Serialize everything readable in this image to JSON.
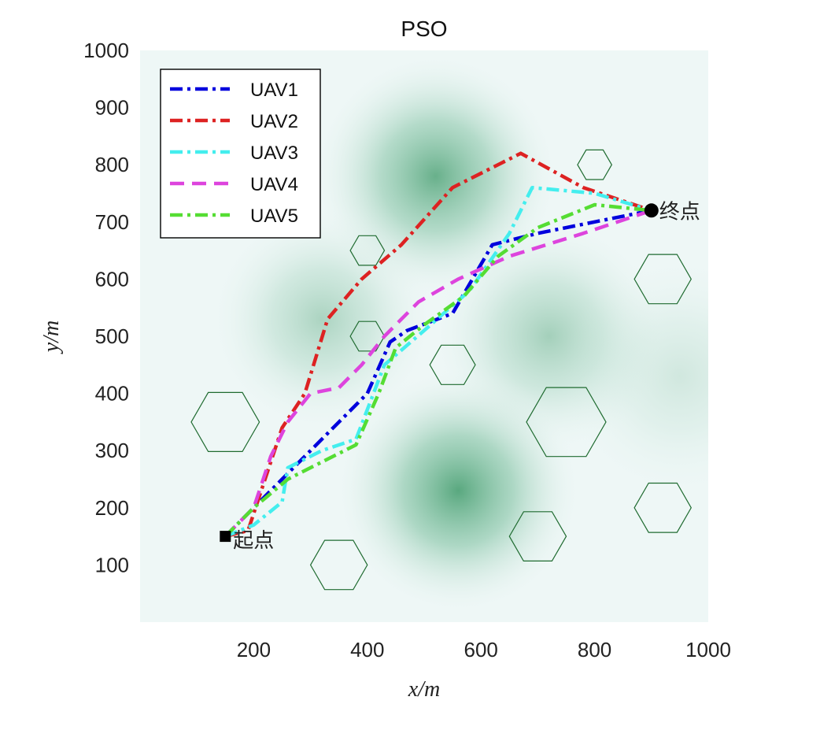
{
  "chart_data": {
    "type": "line",
    "title": "PSO",
    "xlabel": "x/m",
    "ylabel": "y/m",
    "xlim": [
      0,
      1000
    ],
    "ylim": [
      0,
      1000
    ],
    "xticks": [
      200,
      400,
      600,
      800,
      1000
    ],
    "yticks": [
      100,
      200,
      300,
      400,
      500,
      600,
      700,
      800,
      900,
      1000
    ],
    "legend_position": "top-left",
    "start": {
      "label": "起点",
      "x": 150,
      "y": 150
    },
    "end": {
      "label": "终点",
      "x": 900,
      "y": 720
    },
    "threat_peaks": [
      {
        "x": 520,
        "y": 780,
        "strength": 0.9,
        "spread": 120
      },
      {
        "x": 320,
        "y": 530,
        "strength": 0.45,
        "spread": 110
      },
      {
        "x": 720,
        "y": 500,
        "strength": 0.5,
        "spread": 115
      },
      {
        "x": 560,
        "y": 230,
        "strength": 1.0,
        "spread": 120
      },
      {
        "x": 950,
        "y": 430,
        "strength": 0.2,
        "spread": 120
      }
    ],
    "obstacles": [
      {
        "x": 800,
        "y": 800,
        "r": 30
      },
      {
        "x": 400,
        "y": 650,
        "r": 30
      },
      {
        "x": 920,
        "y": 600,
        "r": 50
      },
      {
        "x": 400,
        "y": 500,
        "r": 30
      },
      {
        "x": 550,
        "y": 450,
        "r": 40
      },
      {
        "x": 150,
        "y": 350,
        "r": 60
      },
      {
        "x": 750,
        "y": 350,
        "r": 70
      },
      {
        "x": 920,
        "y": 200,
        "r": 50
      },
      {
        "x": 700,
        "y": 150,
        "r": 50
      },
      {
        "x": 350,
        "y": 100,
        "r": 50
      }
    ],
    "series": [
      {
        "name": "UAV1",
        "color": "#0000dd",
        "dash": "dashdot",
        "points": [
          [
            150,
            150
          ],
          [
            200,
            200
          ],
          [
            250,
            250
          ],
          [
            300,
            300
          ],
          [
            350,
            350
          ],
          [
            400,
            400
          ],
          [
            440,
            490
          ],
          [
            470,
            510
          ],
          [
            550,
            540
          ],
          [
            620,
            660
          ],
          [
            700,
            680
          ],
          [
            800,
            700
          ],
          [
            900,
            720
          ]
        ]
      },
      {
        "name": "UAV2",
        "color": "#dd2222",
        "dash": "dashdot",
        "points": [
          [
            150,
            150
          ],
          [
            190,
            160
          ],
          [
            220,
            250
          ],
          [
            250,
            340
          ],
          [
            290,
            400
          ],
          [
            330,
            530
          ],
          [
            390,
            600
          ],
          [
            460,
            660
          ],
          [
            550,
            760
          ],
          [
            670,
            820
          ],
          [
            780,
            760
          ],
          [
            900,
            720
          ]
        ]
      },
      {
        "name": "UAV3",
        "color": "#44eeee",
        "dash": "dashdot",
        "points": [
          [
            150,
            150
          ],
          [
            200,
            170
          ],
          [
            250,
            210
          ],
          [
            260,
            270
          ],
          [
            320,
            300
          ],
          [
            380,
            320
          ],
          [
            430,
            450
          ],
          [
            500,
            510
          ],
          [
            580,
            580
          ],
          [
            650,
            680
          ],
          [
            690,
            760
          ],
          [
            800,
            750
          ],
          [
            900,
            720
          ]
        ]
      },
      {
        "name": "UAV4",
        "color": "#dd44dd",
        "dash": "dashed",
        "points": [
          [
            150,
            150
          ],
          [
            200,
            200
          ],
          [
            230,
            290
          ],
          [
            260,
            350
          ],
          [
            300,
            400
          ],
          [
            350,
            410
          ],
          [
            390,
            450
          ],
          [
            430,
            500
          ],
          [
            490,
            560
          ],
          [
            560,
            600
          ],
          [
            650,
            640
          ],
          [
            780,
            680
          ],
          [
            900,
            720
          ]
        ]
      },
      {
        "name": "UAV5",
        "color": "#55dd33",
        "dash": "dashdot",
        "points": [
          [
            150,
            150
          ],
          [
            200,
            200
          ],
          [
            260,
            250
          ],
          [
            320,
            280
          ],
          [
            380,
            310
          ],
          [
            420,
            400
          ],
          [
            450,
            480
          ],
          [
            500,
            520
          ],
          [
            570,
            570
          ],
          [
            630,
            640
          ],
          [
            700,
            690
          ],
          [
            800,
            730
          ],
          [
            900,
            720
          ]
        ]
      }
    ]
  }
}
